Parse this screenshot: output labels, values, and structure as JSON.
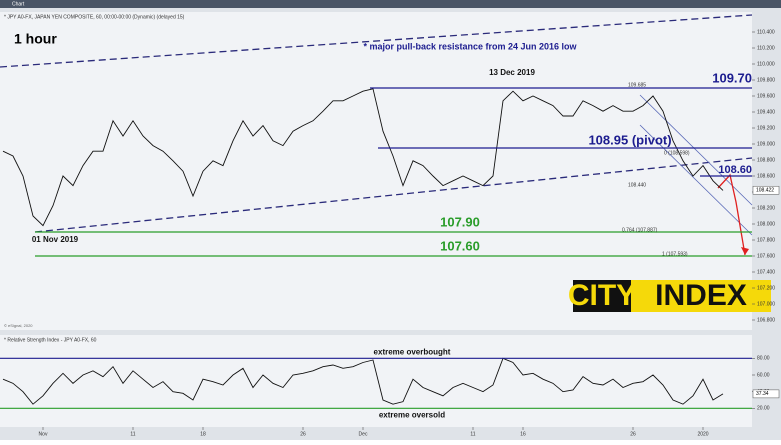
{
  "chart_data": [
    {
      "type": "line",
      "title": "1 hour",
      "subtitle": "* JPY A0-FX, JAPAN YEN COMPOSITE, 60, 00:00-00:00 (Dynamic) (delayed 15)",
      "toolbar": "Chart",
      "credit": "© eSignal, 2020",
      "color": "#111111",
      "values": [
        108.91,
        108.85,
        108.6,
        108.1,
        107.98,
        108.23,
        108.6,
        108.48,
        108.73,
        108.91,
        108.91,
        109.29,
        109.1,
        109.29,
        109.1,
        108.98,
        108.91,
        108.79,
        108.66,
        108.35,
        108.66,
        108.79,
        108.73,
        109.04,
        109.29,
        109.1,
        109.23,
        109.04,
        108.98,
        109.16,
        109.23,
        109.29,
        109.41,
        109.54,
        109.54,
        109.6,
        109.66,
        109.69,
        109.16,
        108.85,
        108.48,
        108.79,
        108.73,
        108.6,
        108.48,
        108.54,
        108.6,
        108.54,
        108.48,
        108.6,
        109.54,
        109.66,
        109.54,
        109.6,
        109.54,
        109.48,
        109.35,
        109.35,
        109.54,
        109.48,
        109.41,
        109.48,
        109.41,
        109.41,
        109.48,
        109.6,
        109.41,
        109.04,
        108.79,
        108.6,
        108.73,
        108.54,
        108.42
      ],
      "ylim": [
        106.7,
        110.65
      ],
      "yticks": [
        {
          "value": 106.8,
          "label": "106.800"
        },
        {
          "value": 107,
          "label": "107.000"
        },
        {
          "value": 107.2,
          "label": "107.200"
        },
        {
          "value": 107.4,
          "label": "107.400"
        },
        {
          "value": 107.6,
          "label": "107.600"
        },
        {
          "value": 107.8,
          "label": "107.800"
        },
        {
          "value": 108,
          "label": "108.000"
        },
        {
          "value": 108.2,
          "label": "108.200"
        },
        {
          "value": 108.4,
          "label": "108.400"
        },
        {
          "value": 108.6,
          "label": "108.600"
        },
        {
          "value": 108.8,
          "label": "108.800"
        },
        {
          "value": 109,
          "label": "109.000"
        },
        {
          "value": 109.2,
          "label": "109.200"
        },
        {
          "value": 109.4,
          "label": "109.400"
        },
        {
          "value": 109.6,
          "label": "109.600"
        },
        {
          "value": 109.8,
          "label": "109.800"
        },
        {
          "value": 110,
          "label": "110.000"
        },
        {
          "value": 110.2,
          "label": "110.200"
        },
        {
          "value": 110.4,
          "label": "110.400"
        }
      ],
      "last_value": {
        "value": 108.422,
        "label": "108.422"
      },
      "levels": [
        {
          "value": 109.7,
          "label": "109.70",
          "color": "#1c1c8f"
        },
        {
          "value": 108.95,
          "label": "108.95 (pivot)",
          "color": "#1c1c8f"
        },
        {
          "value": 108.6,
          "label": "108.60",
          "color": "#1c1c8f"
        },
        {
          "value": 107.9,
          "label": "107.90",
          "color": "#2a9d2a"
        },
        {
          "value": 107.6,
          "label": "107.60",
          "color": "#2a9d2a"
        }
      ],
      "annotations": [
        "* major pull-back resistance from 24 Jun 2016 low",
        "13 Dec 2019",
        "01 Nov 2019"
      ],
      "fib_labels": [
        "109.685",
        "0 (108.598)",
        "108.440",
        "0.764 (107.887)",
        "1 (107.593)"
      ],
      "logo": [
        "CITY",
        "INDEX"
      ]
    },
    {
      "type": "line",
      "title": "* Relative Strength Index - JPY A0-FX, 60",
      "color": "#111111",
      "categories": [
        null,
        null,
        null,
        null,
        "Nov",
        null,
        null,
        null,
        null,
        null,
        null,
        null,
        null,
        "11",
        null,
        null,
        null,
        null,
        null,
        null,
        "18",
        null,
        null,
        null,
        null,
        null,
        null,
        null,
        null,
        null,
        "26",
        null,
        null,
        null,
        null,
        null,
        "Dec",
        null,
        null,
        null,
        null,
        null,
        null,
        null,
        null,
        null,
        null,
        "11",
        null,
        null,
        null,
        null,
        "16",
        null,
        null,
        null,
        null,
        null,
        null,
        null,
        null,
        null,
        null,
        "26",
        null,
        null,
        null,
        null,
        null,
        null,
        "2020",
        null,
        null
      ],
      "values": [
        55,
        50,
        40,
        25,
        35,
        50,
        62,
        50,
        60,
        65,
        58,
        70,
        50,
        65,
        55,
        45,
        52,
        40,
        38,
        30,
        55,
        52,
        48,
        60,
        68,
        45,
        60,
        50,
        45,
        60,
        62,
        65,
        70,
        72,
        68,
        70,
        75,
        78,
        30,
        25,
        28,
        55,
        45,
        40,
        35,
        45,
        50,
        45,
        40,
        48,
        80,
        75,
        60,
        62,
        55,
        50,
        40,
        42,
        58,
        50,
        48,
        55,
        45,
        50,
        52,
        60,
        48,
        30,
        25,
        35,
        55,
        30,
        37.34
      ],
      "ylim": [
        0,
        96
      ],
      "yticks": [
        {
          "value": 20,
          "label": "20.00"
        },
        {
          "value": 40,
          "label": "40.00"
        },
        {
          "value": 60,
          "label": "60.00"
        },
        {
          "value": 80,
          "label": "80.00"
        }
      ],
      "last_value": 37.34,
      "levels": [
        {
          "value": 80,
          "label": "extreme overbought",
          "color": "#1c1c8f"
        },
        {
          "value": 20,
          "label": "extreme oversold",
          "color": "#2a9d2a"
        }
      ]
    }
  ]
}
